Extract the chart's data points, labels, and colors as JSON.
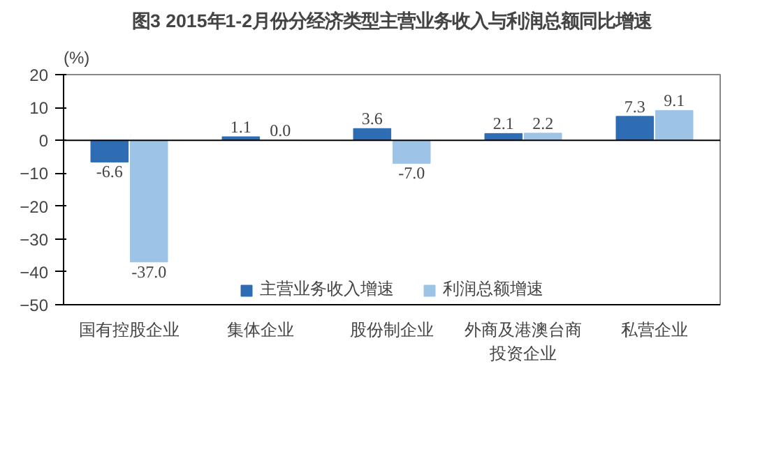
{
  "chart_data": {
    "type": "bar",
    "title": "图3 2015年1-2月份分经济类型主营业务收入与利润总额同比增速",
    "ylabel": "(%)",
    "categories": [
      "国有控股企业",
      "集体企业",
      "股份制企业",
      "外商及港澳台商投资企业",
      "私营企业"
    ],
    "series": [
      {
        "name": "主营业务收入增速",
        "color": "#2e6db4",
        "values": [
          -6.6,
          1.1,
          3.6,
          2.1,
          7.3
        ],
        "value_labels": [
          "-6.6",
          "1.1",
          "3.6",
          "2.1",
          "7.3"
        ]
      },
      {
        "name": "利润总额增速",
        "color": "#9dc3e6",
        "values": [
          -37.0,
          0.0,
          -7.0,
          2.2,
          9.1
        ],
        "value_labels": [
          "-37.0",
          "0.0",
          "-7.0",
          "2.2",
          "9.1"
        ]
      }
    ],
    "ylim": [
      -50,
      20
    ],
    "yticks": [
      -50,
      -40,
      -30,
      -20,
      -10,
      0,
      10,
      20
    ],
    "ref_lines": [
      {
        "axis": "y",
        "value": 0,
        "color": "#000000"
      }
    ],
    "legend": "bottom",
    "grid": false
  }
}
